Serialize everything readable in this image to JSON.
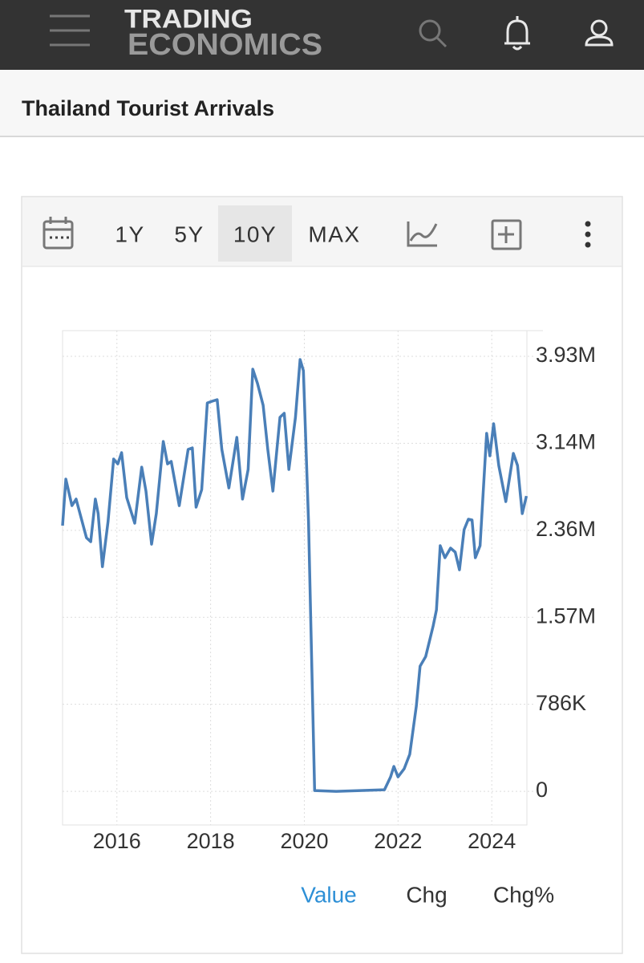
{
  "header": {
    "logo_top": "TRADING",
    "logo_bottom": "ECONOMICS"
  },
  "page_title": "Thailand Tourist Arrivals",
  "toolbar": {
    "ranges": [
      "1Y",
      "5Y",
      "10Y",
      "MAX"
    ],
    "active_range": 2
  },
  "chart_data": {
    "type": "line",
    "color": "#4a7fb8",
    "grid": true,
    "y_axis_side": "right",
    "x": [
      2014.84,
      2014.91,
      2015.04,
      2015.13,
      2015.35,
      2015.44,
      2015.54,
      2015.6,
      2015.69,
      2015.81,
      2015.93,
      2016.02,
      2016.1,
      2016.21,
      2016.38,
      2016.53,
      2016.62,
      2016.74,
      2016.84,
      2016.99,
      2017.08,
      2017.16,
      2017.33,
      2017.52,
      2017.61,
      2017.69,
      2017.81,
      2017.93,
      2018.03,
      2018.14,
      2018.24,
      2018.39,
      2018.56,
      2018.68,
      2018.8,
      2018.9,
      2019.0,
      2019.12,
      2019.22,
      2019.33,
      2019.48,
      2019.57,
      2019.67,
      2019.81,
      2019.91,
      2019.98,
      2020.09,
      2020.22,
      2020.68,
      2021.71,
      2021.84,
      2021.91,
      2022.0,
      2022.13,
      2022.25,
      2022.39,
      2022.47,
      2022.59,
      2022.75,
      2022.82,
      2022.9,
      2023.0,
      2023.12,
      2023.22,
      2023.31,
      2023.41,
      2023.5,
      2023.58,
      2023.65,
      2023.75,
      2023.89,
      2023.96,
      2024.04,
      2024.15,
      2024.3,
      2024.46,
      2024.55,
      2024.65,
      2024.74
    ],
    "values": [
      2400000,
      2821000,
      2581000,
      2640000,
      2291000,
      2255000,
      2640000,
      2509000,
      2030000,
      2436000,
      3002000,
      2958000,
      3060000,
      2654000,
      2422000,
      2929000,
      2712000,
      2233000,
      2509000,
      3161000,
      2958000,
      2980000,
      2581000,
      3089000,
      3103000,
      2567000,
      2726000,
      3509000,
      3524000,
      3538000,
      3089000,
      2741000,
      3198000,
      2640000,
      2908000,
      3814000,
      3684000,
      3488000,
      3089000,
      2712000,
      3379000,
      3415000,
      2908000,
      3379000,
      3901000,
      3800000,
      2436000,
      7000,
      0,
      14000,
      130000,
      225000,
      130000,
      203000,
      334000,
      769000,
      1131000,
      1218000,
      1494000,
      1639000,
      2219000,
      2110000,
      2197000,
      2161000,
      2001000,
      2364000,
      2458000,
      2451000,
      2110000,
      2219000,
      3234000,
      3031000,
      3321000,
      2944000,
      2618000,
      3053000,
      2944000,
      2509000,
      2668000
    ],
    "xlim": [
      2014.84,
      2024.75
    ],
    "xticks": [
      2016,
      2018,
      2020,
      2022,
      2024
    ],
    "ylim": [
      -304000,
      4162000
    ],
    "yticks": [
      0,
      {
        "value": 786000,
        "label": "786K"
      },
      {
        "value": 1572000,
        "label": "1.57M"
      },
      {
        "value": 2358000,
        "label": "2.36M"
      },
      {
        "value": 3144000,
        "label": "3.14M"
      },
      {
        "value": 3930000,
        "label": "3.93M"
      }
    ]
  },
  "tabs": [
    "Value",
    "Chg",
    "Chg%"
  ],
  "active_tab": 0
}
